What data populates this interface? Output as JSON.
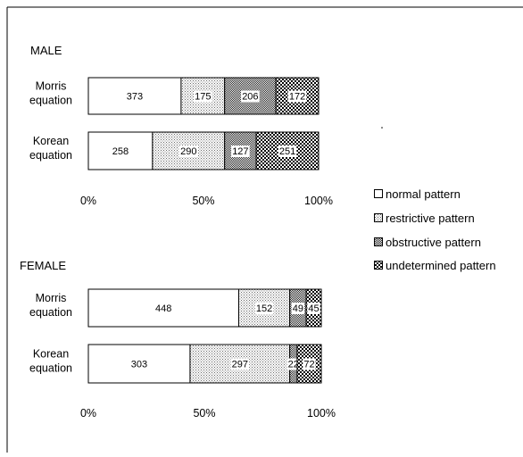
{
  "chart_data": {
    "type": "bar",
    "orientation": "horizontal",
    "stacking": "percent",
    "xlim": [
      0,
      100
    ],
    "x_ticks": [
      "0%",
      "50%",
      "100%"
    ],
    "grid": false,
    "legend_position": "right",
    "series": [
      {
        "name": "normal pattern",
        "pattern": "none",
        "color": "#ffffff"
      },
      {
        "name": "restrictive pattern",
        "pattern": "fine-dots",
        "color": "#dcdcdc"
      },
      {
        "name": "obstructive pattern",
        "pattern": "medium-dots",
        "color": "#9a9a9a"
      },
      {
        "name": "undetermined pattern",
        "pattern": "checker",
        "color": "#5a5a5a"
      }
    ],
    "groups": [
      {
        "title": "MALE",
        "bars": [
          {
            "label": [
              "Morris",
              "equation"
            ],
            "values": [
              373,
              175,
              206,
              172
            ]
          },
          {
            "label": [
              "Korean",
              "equation"
            ],
            "values": [
              258,
              290,
              127,
              251
            ]
          }
        ]
      },
      {
        "title": "FEMALE",
        "bars": [
          {
            "label": [
              "Morris",
              "equation"
            ],
            "values": [
              448,
              152,
              49,
              45
            ]
          },
          {
            "label": [
              "Korean",
              "equation"
            ],
            "values": [
              303,
              297,
              22,
              72
            ]
          }
        ]
      }
    ]
  }
}
